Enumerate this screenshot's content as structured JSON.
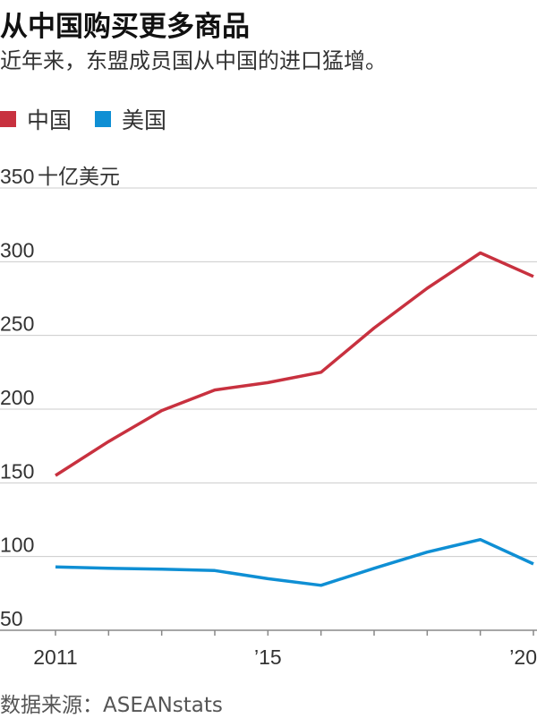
{
  "title": "从中国购买更多商品",
  "subtitle": "近年来，东盟成员国从中国的进口猛增。",
  "source": "数据来源：ASEANstats",
  "colors": {
    "china": "#c8313f",
    "us": "#0f8fd4",
    "grid": "#cccccc",
    "axis": "#888888"
  },
  "chart_data": {
    "type": "line",
    "ylabel": "十亿美元",
    "ylim": [
      50,
      350
    ],
    "yticks": [
      50,
      100,
      150,
      200,
      250,
      300,
      350
    ],
    "x": [
      2011,
      2012,
      2013,
      2014,
      2015,
      2016,
      2017,
      2018,
      2019,
      2020
    ],
    "xlim": [
      2011,
      2020
    ],
    "xticks": [
      {
        "value": 2011,
        "label": "2011"
      },
      {
        "value": 2015,
        "label": "’15"
      },
      {
        "value": 2020,
        "label": "’20"
      }
    ],
    "series": [
      {
        "name": "中国",
        "color": "#c8313f",
        "values": [
          155,
          178,
          199,
          213,
          218,
          225,
          255,
          282,
          306,
          290
        ]
      },
      {
        "name": "美国",
        "color": "#0f8fd4",
        "values": [
          93,
          92,
          91.5,
          90.5,
          85,
          80.5,
          92,
          103,
          111.5,
          95
        ]
      }
    ],
    "grid": true,
    "legend": "top-left"
  }
}
